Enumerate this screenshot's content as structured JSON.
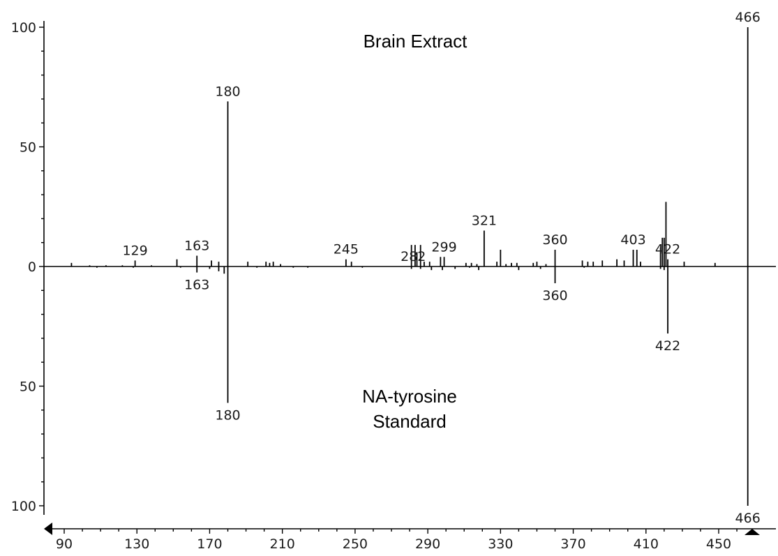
{
  "chart_data": {
    "type": "bar",
    "chart_kind": "mirror mass spectrum",
    "title": "",
    "xlabel": "",
    "ylabel": "",
    "xlim": [
      84,
      467
    ],
    "x_ticks": [
      90,
      130,
      170,
      210,
      250,
      290,
      330,
      370,
      410,
      450
    ],
    "y_ticks_top": [
      0,
      50,
      100
    ],
    "y_ticks_bottom": [
      50,
      100
    ],
    "ylim_top": [
      0,
      100
    ],
    "ylim_bottom": [
      0,
      100
    ],
    "grid": false,
    "top_panel_label": "Brain Extract",
    "bottom_panel_label": [
      "NA-tyrosine",
      "Standard"
    ],
    "series": [
      {
        "name": "Brain Extract",
        "direction": "up",
        "x": [
          94,
          104,
          113,
          122,
          129,
          138,
          152,
          163,
          171,
          175,
          180,
          191,
          201,
          203,
          205,
          209,
          245,
          248,
          281,
          283,
          284,
          286,
          288,
          291,
          297,
          299,
          311,
          314,
          317,
          321,
          328,
          330,
          333,
          336,
          339,
          348,
          350,
          355,
          360,
          375,
          378,
          381,
          386,
          394,
          398,
          403,
          405,
          407,
          418,
          419,
          420,
          421,
          422,
          431,
          448,
          466
        ],
        "values": [
          1.5,
          0.5,
          0.5,
          0.5,
          2.5,
          0.5,
          3,
          4.5,
          2.5,
          2,
          69,
          2,
          2,
          1.5,
          2,
          1,
          3,
          2,
          9,
          9,
          6,
          9,
          2,
          2,
          4,
          4,
          1.5,
          1.5,
          1,
          15,
          2,
          7,
          1,
          1.5,
          1.5,
          1.5,
          2,
          1,
          7,
          2.5,
          2,
          2,
          2.5,
          3,
          2.5,
          7,
          7,
          2,
          8,
          12,
          12,
          27,
          3,
          2,
          1.5,
          100
        ]
      },
      {
        "name": "NA-tyrosine Standard",
        "direction": "down",
        "x": [
          108,
          128,
          154,
          163,
          170,
          175,
          178,
          180,
          196,
          216,
          224,
          254,
          281,
          286,
          292,
          298,
          305,
          313,
          318,
          340,
          352,
          360,
          376,
          418,
          420,
          422,
          466
        ],
        "values": [
          0.5,
          0.5,
          0.5,
          2.5,
          1,
          2,
          3,
          57,
          0.5,
          0.5,
          0.5,
          0.5,
          1,
          1,
          1.5,
          1.5,
          1,
          0.5,
          1.5,
          1.5,
          1,
          7,
          0.5,
          1,
          1.5,
          28,
          100
        ]
      }
    ],
    "annotations_top": [
      {
        "x": 129,
        "text": "129"
      },
      {
        "x": 163,
        "text": "163"
      },
      {
        "x": 180,
        "text": "180"
      },
      {
        "x": 245,
        "text": "245"
      },
      {
        "x": 282,
        "text": "282"
      },
      {
        "x": 299,
        "text": "299"
      },
      {
        "x": 321,
        "text": "321"
      },
      {
        "x": 360,
        "text": "360"
      },
      {
        "x": 403,
        "text": "403"
      },
      {
        "x": 422,
        "text": "422"
      },
      {
        "x": 466,
        "text": "466"
      }
    ],
    "annotations_bottom": [
      {
        "x": 163,
        "text": "163"
      },
      {
        "x": 180,
        "text": "180"
      },
      {
        "x": 360,
        "text": "360"
      },
      {
        "x": 422,
        "text": "422"
      },
      {
        "x": 466,
        "text": "466"
      }
    ]
  }
}
